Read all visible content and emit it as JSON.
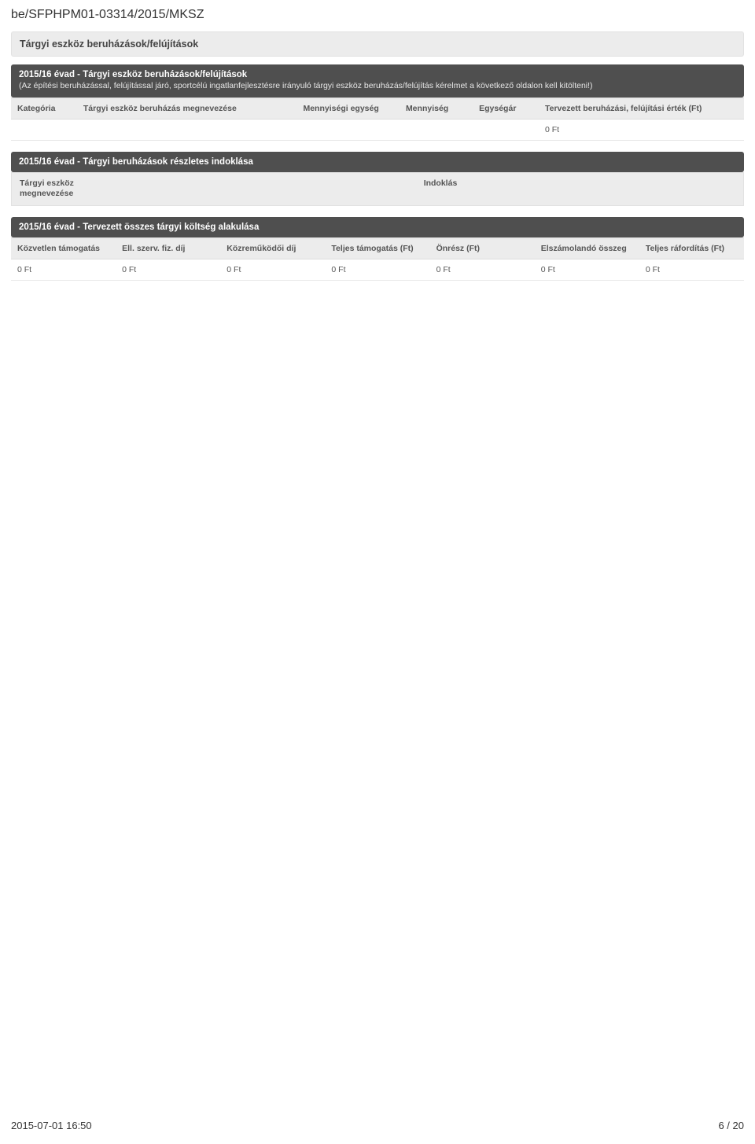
{
  "doc_id": "be/SFPHPM01-03314/2015/MKSZ",
  "section_title": "Tárgyi eszköz beruházások/felújítások",
  "block1": {
    "title": "2015/16 évad - Tárgyi eszköz beruházások/felújítások",
    "subtext": "(Az építési beruházással, felújítással járó, sportcélú ingatlanfejlesztésre irányuló tárgyi eszköz beruházás/felújítás kérelmet a következő oldalon kell kitölteni!)",
    "columns": [
      "Kategória",
      "Tárgyi eszköz beruházás megnevezése",
      "Mennyiségi egység",
      "Mennyiség",
      "Egységár",
      "Tervezett beruházási, felújítási érték (Ft)"
    ],
    "total_value": "0 Ft"
  },
  "block2": {
    "title": "2015/16 évad - Tárgyi beruházások részletes indoklása",
    "left_label": "Tárgyi eszköz megnevezése",
    "right_label": "Indoklás"
  },
  "block3": {
    "title": "2015/16 évad - Tervezett összes tárgyi költség alakulása",
    "columns": [
      "Közvetlen támogatás",
      "Ell. szerv. fiz. díj",
      "Közreműködői díj",
      "Teljes támogatás (Ft)",
      "Önrész (Ft)",
      "Elszámolandó összeg",
      "Teljes ráfordítás (Ft)"
    ],
    "row": [
      "0 Ft",
      "0 Ft",
      "0 Ft",
      "0 Ft",
      "0 Ft",
      "0 Ft",
      "0 Ft"
    ]
  },
  "footer": {
    "timestamp": "2015-07-01 16:50",
    "page": "6 / 20"
  },
  "style": {
    "background_color": "#ffffff",
    "section_header_bg": "#ececec",
    "dark_bar_bg": "#4f4f4f",
    "dark_bar_text": "#ffffff",
    "table_header_bg": "#ececec",
    "table_border": "#dcdcdc",
    "text_color": "#333333",
    "muted_text": "#555555",
    "doc_id_fontsize": 16,
    "section_header_fontsize": 12.5,
    "darkbar_fontsize": 11.5,
    "table_fontsize": 10.5,
    "footer_fontsize": 13
  }
}
